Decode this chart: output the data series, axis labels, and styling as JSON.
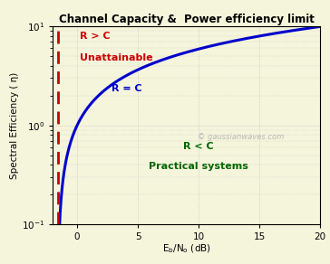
{
  "title": "Channel Capacity &  Power efficiency limit",
  "ylabel": "Spectral Efficiency ( η)",
  "xlim": [
    -2,
    20
  ],
  "ylim": [
    0.1,
    10
  ],
  "dashed_line_x": -1.59,
  "curve_color": "#0000cc",
  "dashed_color": "#cc0000",
  "bg_color": "#f5f5dc",
  "title_color": "#000000",
  "label_r_gt_c": "R > C",
  "label_unattainable": "Unattainable",
  "label_r_eq_c": "R = C",
  "label_r_lt_c": "R < C",
  "label_practical": "Practical systems",
  "watermark": "© gaussianwaves.com",
  "watermark_color": "#b0b0b0",
  "grid_color": "#bbbbbb",
  "annotation_r_gt_c_color": "#cc0000",
  "annotation_r_lt_c_color": "#006600",
  "annotation_r_eq_c_color": "#0000cc",
  "xticks": [
    0,
    5,
    10,
    15,
    20
  ],
  "yticks": [
    0.1,
    1.0,
    10.0
  ],
  "dashed_linewidth": 2.0,
  "curve_linewidth": 2.2,
  "title_fontsize": 8.5,
  "label_fontsize": 7.5,
  "tick_fontsize": 7.5,
  "annot_fontsize": 8.0,
  "watermark_fontsize": 6.0
}
